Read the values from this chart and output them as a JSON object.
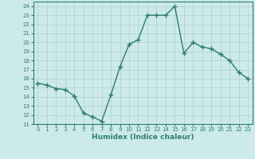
{
  "x": [
    0,
    1,
    2,
    3,
    4,
    5,
    6,
    7,
    8,
    9,
    10,
    11,
    12,
    13,
    14,
    15,
    16,
    17,
    18,
    19,
    20,
    21,
    22,
    23
  ],
  "y": [
    15.5,
    15.3,
    14.9,
    14.8,
    14.1,
    12.2,
    11.8,
    11.3,
    14.2,
    17.3,
    19.8,
    20.3,
    23.0,
    23.0,
    23.0,
    24.0,
    18.8,
    20.0,
    19.5,
    19.3,
    18.7,
    18.0,
    16.7,
    16.0
  ],
  "xlabel": "Humidex (Indice chaleur)",
  "ylim": [
    11,
    24.5
  ],
  "xlim": [
    -0.5,
    23.5
  ],
  "yticks": [
    11,
    12,
    13,
    14,
    15,
    16,
    17,
    18,
    19,
    20,
    21,
    22,
    23,
    24
  ],
  "xticks": [
    0,
    1,
    2,
    3,
    4,
    5,
    6,
    7,
    8,
    9,
    10,
    11,
    12,
    13,
    14,
    15,
    16,
    17,
    18,
    19,
    20,
    21,
    22,
    23
  ],
  "line_color": "#2e7d6e",
  "bg_color": "#cceaea",
  "grid_color": "#b0cece",
  "marker": "+",
  "marker_size": 4,
  "linewidth": 1.0
}
